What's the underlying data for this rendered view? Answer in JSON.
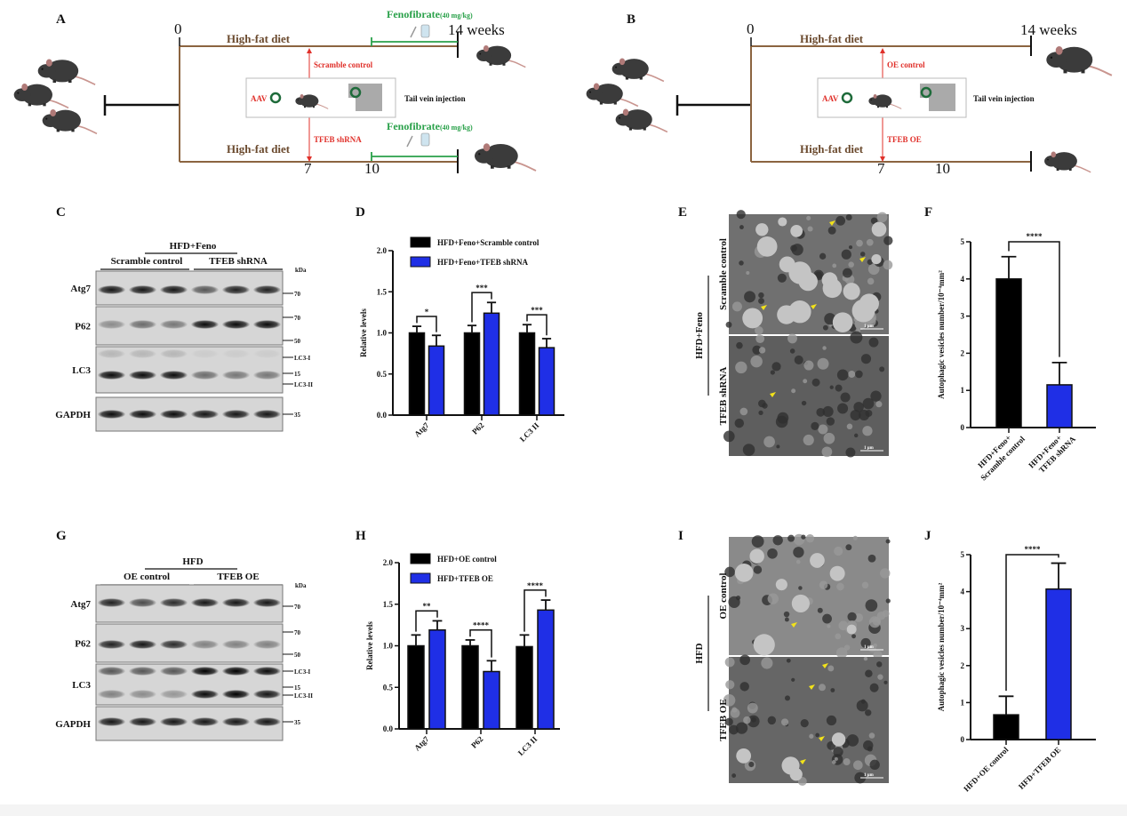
{
  "panel_labels": {
    "A": "A",
    "B": "B",
    "C": "C",
    "D": "D",
    "E": "E",
    "F": "F",
    "G": "G",
    "H": "H",
    "I": "I",
    "J": "J"
  },
  "schematic_a": {
    "t0": "0",
    "t7": "7",
    "t10": "10",
    "end": "14 weeks",
    "diet_top": "High-fat diet",
    "diet_bottom": "High-fat diet",
    "drug": "Fenofibrate",
    "dose": "(40 mg/kg)",
    "arm_top": "Scramble control",
    "arm_bottom": "TFEB shRNA",
    "vector": "AAV",
    "route": "Tail vein injection"
  },
  "schematic_b": {
    "t0": "0",
    "t7": "7",
    "t10": "10",
    "end": "14 weeks",
    "diet_top": "High-fat diet",
    "diet_bottom": "High-fat diet",
    "arm_top": "OE control",
    "arm_bottom": "TFEB OE",
    "vector": "AAV",
    "route": "Tail vein injection"
  },
  "blot_c": {
    "treatment": "HFD+Feno",
    "group1": "Scramble control",
    "group2": "TFEB shRNA",
    "unit": "kDa",
    "rows": [
      {
        "label": "Atg7",
        "markers": [
          "70"
        ],
        "bands": [
          [
            0.9,
            0.9,
            0.9,
            0.6,
            0.85,
            0.85
          ]
        ]
      },
      {
        "label": "P62",
        "markers": [
          "70",
          "50"
        ],
        "bands": [
          [
            0.35,
            0.5,
            0.45,
            0.95,
            0.95,
            0.95
          ]
        ]
      },
      {
        "label": "LC3",
        "markers": [
          "LC3-I",
          "15",
          "LC3-II"
        ],
        "bands": [
          [
            0.15,
            0.15,
            0.15,
            0.05,
            0.05,
            0.05
          ],
          [
            0.95,
            0.95,
            0.95,
            0.5,
            0.45,
            0.45
          ]
        ]
      },
      {
        "label": "GAPDH",
        "markers": [
          "35"
        ],
        "bands": [
          [
            0.95,
            0.95,
            0.95,
            0.9,
            0.9,
            0.9
          ]
        ]
      }
    ]
  },
  "blot_g": {
    "treatment": "HFD",
    "group1": "OE control",
    "group2": "TFEB OE",
    "unit": "kDa",
    "rows": [
      {
        "label": "Atg7",
        "markers": [
          "70"
        ],
        "bands": [
          [
            0.85,
            0.65,
            0.8,
            0.9,
            0.9,
            0.9
          ]
        ]
      },
      {
        "label": "P62",
        "markers": [
          "70",
          "50"
        ],
        "bands": [
          [
            0.85,
            0.9,
            0.8,
            0.4,
            0.4,
            0.4
          ]
        ]
      },
      {
        "label": "LC3",
        "markers": [
          "LC3-I",
          "15",
          "LC3-II"
        ],
        "bands": [
          [
            0.6,
            0.6,
            0.6,
            1.0,
            1.0,
            0.95
          ],
          [
            0.4,
            0.35,
            0.3,
            0.95,
            1.0,
            0.9
          ]
        ]
      },
      {
        "label": "GAPDH",
        "markers": [
          "35"
        ],
        "bands": [
          [
            0.9,
            0.9,
            0.9,
            0.9,
            0.9,
            0.9
          ]
        ]
      }
    ]
  },
  "em_e": {
    "treatment": "HFD+Feno",
    "top": "Scramble control",
    "bottom": "TFEB shRNA",
    "scale": "1 μm"
  },
  "em_i": {
    "treatment": "HFD",
    "top": "OE control",
    "bottom": "TFEB OE",
    "scale": "1 μm"
  },
  "chart_data": [
    {
      "panel": "D",
      "type": "bar",
      "title": "",
      "xlabel": "",
      "ylabel": "Relative levels",
      "ylim": [
        0,
        2.0
      ],
      "yticks": [
        "0.0",
        "0.5",
        "1.0",
        "1.5",
        "2.0"
      ],
      "categories": [
        "Atg7",
        "P62",
        "LC3 II"
      ],
      "series": [
        {
          "name": "HFD+Feno+Scramble control",
          "color": "#000000",
          "values": [
            1.0,
            1.0,
            1.0
          ],
          "errors": [
            0.08,
            0.09,
            0.1
          ]
        },
        {
          "name": "HFD+Feno+TFEB shRNA",
          "color": "#1f2fe6",
          "values": [
            0.84,
            1.24,
            0.82
          ],
          "errors": [
            0.13,
            0.13,
            0.11
          ]
        }
      ],
      "significance": [
        "*",
        "***",
        "***"
      ],
      "legend": "top"
    },
    {
      "panel": "H",
      "type": "bar",
      "title": "",
      "xlabel": "",
      "ylabel": "Relative levels",
      "ylim": [
        0,
        2.0
      ],
      "yticks": [
        "0.0",
        "0.5",
        "1.0",
        "1.5",
        "2.0"
      ],
      "categories": [
        "Atg7",
        "P62",
        "LC3 II"
      ],
      "series": [
        {
          "name": "HFD+OE control",
          "color": "#000000",
          "values": [
            1.0,
            1.0,
            0.99
          ],
          "errors": [
            0.13,
            0.07,
            0.14
          ]
        },
        {
          "name": "HFD+TFEB OE",
          "color": "#1f2fe6",
          "values": [
            1.19,
            0.69,
            1.43
          ],
          "errors": [
            0.11,
            0.13,
            0.12
          ]
        }
      ],
      "significance": [
        "**",
        "****",
        "****"
      ],
      "legend": "top"
    },
    {
      "panel": "F",
      "type": "bar",
      "title": "",
      "xlabel": "",
      "ylabel": "Autophagic vesicles number/10⁻⁴mm²",
      "ylim": [
        0,
        5
      ],
      "yticks": [
        "0",
        "1",
        "2",
        "3",
        "4",
        "5"
      ],
      "categories": [
        [
          "HFD+Feno+",
          "Scramble control"
        ],
        [
          "HFD+Feno+",
          "TFEB shRNA"
        ]
      ],
      "values": [
        4.0,
        1.15
      ],
      "errors": [
        0.6,
        0.6
      ],
      "colors": [
        "#000000",
        "#1f2fe6"
      ],
      "significance": "****"
    },
    {
      "panel": "J",
      "type": "bar",
      "title": "",
      "xlabel": "",
      "ylabel": "Autophagic vesicles number/10⁻⁴mm²",
      "ylim": [
        0,
        5
      ],
      "yticks": [
        "0",
        "1",
        "2",
        "3",
        "4",
        "5"
      ],
      "categories": [
        [
          "HFD+OE control"
        ],
        [
          "HFD+TFEB OE"
        ]
      ],
      "values": [
        0.67,
        4.07
      ],
      "errors": [
        0.5,
        0.7
      ],
      "colors": [
        "#000000",
        "#1f2fe6"
      ],
      "significance": "****"
    }
  ]
}
